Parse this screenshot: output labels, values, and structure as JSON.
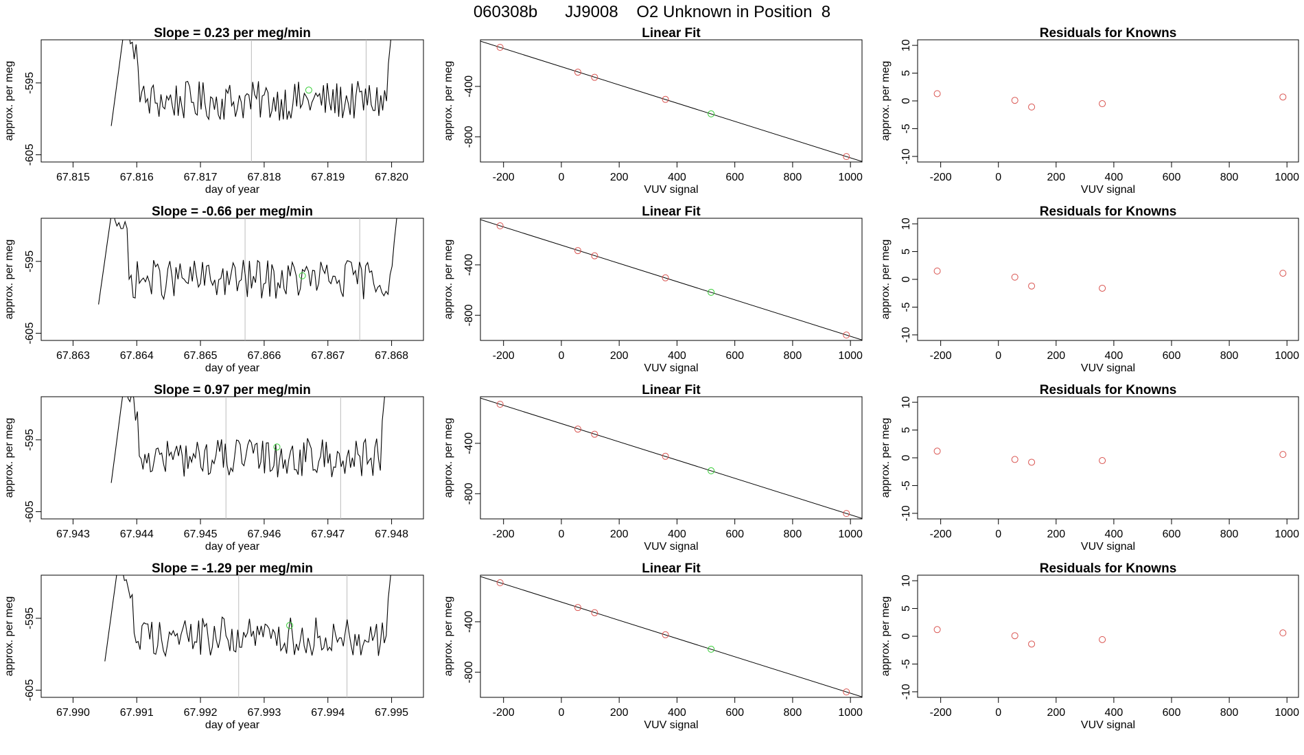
{
  "page_title": "060308b      JJ9008    O2 Unknown in Position  8",
  "colors": {
    "trace": "#000000",
    "known_point": "#d9534f",
    "unknown_point": "#33cc33",
    "guide_line": "#bbbbbb"
  },
  "labels": {
    "time_xlabel": "day of year",
    "time_ylabel": "approx. per meg",
    "fit_title": "Linear Fit",
    "fit_xlabel": "VUV signal",
    "fit_ylabel": "approx. per meg",
    "resid_title": "Residuals for Knowns",
    "resid_xlabel": "VUV signal",
    "resid_ylabel": "approx. per meg"
  },
  "chart_data": [
    {
      "type": "line",
      "title": "Slope =  0.23  per meg/min",
      "xlabel": "day of year",
      "ylabel": "approx. per meg",
      "xlim": [
        67.8145,
        67.8205
      ],
      "ylim": [
        -606,
        -589
      ],
      "x_ticks": [
        "67.815",
        "67.816",
        "67.817",
        "67.818",
        "67.819",
        "67.820"
      ],
      "x_tick_values": [
        67.815,
        67.816,
        67.817,
        67.818,
        67.819,
        67.82
      ],
      "y_ticks": [
        "-595",
        "-605"
      ],
      "y_tick_values": [
        -595,
        -605
      ],
      "x_start": 67.8156,
      "x_end": 67.8201,
      "vlines": [
        67.8178,
        67.8196
      ],
      "unknown_point": [
        67.8187,
        -596
      ]
    },
    {
      "type": "scatter",
      "title": "Linear Fit",
      "xlabel": "VUV signal",
      "ylabel": "approx. per meg",
      "xlim": [
        -280,
        1040
      ],
      "ylim": [
        -1000,
        -30
      ],
      "x_ticks": [
        "-200",
        "0",
        "200",
        "400",
        "600",
        "800",
        "1000"
      ],
      "x_tick_values": [
        -200,
        0,
        200,
        400,
        600,
        800,
        1000
      ],
      "y_ticks": [
        "-400",
        "-800"
      ],
      "y_tick_values": [
        -400,
        -800
      ],
      "known_points": [
        [
          -212,
          -90
        ],
        [
          57,
          -287
        ],
        [
          115,
          -328
        ],
        [
          360,
          -503
        ],
        [
          986,
          -957
        ]
      ],
      "unknown_point": [
        518,
        -618
      ],
      "fit_line": [
        [
          -280,
          -41
        ],
        [
          1040,
          -996
        ]
      ]
    },
    {
      "type": "scatter",
      "title": "Residuals for Knowns",
      "xlabel": "VUV signal",
      "ylabel": "approx. per meg",
      "xlim": [
        -280,
        1040
      ],
      "ylim": [
        -11,
        11
      ],
      "x_ticks": [
        "-200",
        "0",
        "200",
        "400",
        "600",
        "800",
        "1000"
      ],
      "x_tick_values": [
        -200,
        0,
        200,
        400,
        600,
        800,
        1000
      ],
      "y_ticks": [
        "10",
        "5",
        "0",
        "-5",
        "-10"
      ],
      "y_tick_values": [
        10,
        5,
        0,
        -5,
        -10
      ],
      "points": [
        [
          -212,
          1.3
        ],
        [
          57,
          0.1
        ],
        [
          115,
          -1.1
        ],
        [
          360,
          -0.5
        ],
        [
          986,
          0.7
        ]
      ]
    },
    {
      "type": "line",
      "title": "Slope =  -0.66  per meg/min",
      "xlabel": "day of year",
      "ylabel": "approx. per meg",
      "xlim": [
        67.8625,
        67.8685
      ],
      "ylim": [
        -606,
        -589
      ],
      "x_ticks": [
        "67.863",
        "67.864",
        "67.865",
        "67.866",
        "67.867",
        "67.868"
      ],
      "x_tick_values": [
        67.863,
        67.864,
        67.865,
        67.866,
        67.867,
        67.868
      ],
      "y_ticks": [
        "-595",
        "-605"
      ],
      "y_tick_values": [
        -595,
        -605
      ],
      "x_start": 67.8634,
      "x_end": 67.8682,
      "vlines": [
        67.8657,
        67.8675
      ],
      "unknown_point": [
        67.8666,
        -597
      ]
    },
    {
      "type": "scatter",
      "title": "Linear Fit",
      "xlabel": "VUV signal",
      "ylabel": "approx. per meg",
      "xlim": [
        -280,
        1040
      ],
      "ylim": [
        -1000,
        -30
      ],
      "x_ticks": [
        "-200",
        "0",
        "200",
        "400",
        "600",
        "800",
        "1000"
      ],
      "x_tick_values": [
        -200,
        0,
        200,
        400,
        600,
        800,
        1000
      ],
      "y_ticks": [
        "-400",
        "-800"
      ],
      "y_tick_values": [
        -400,
        -800
      ],
      "known_points": [
        [
          -212,
          -90
        ],
        [
          57,
          -287
        ],
        [
          115,
          -328
        ],
        [
          360,
          -503
        ],
        [
          986,
          -957
        ]
      ],
      "unknown_point": [
        518,
        -618
      ],
      "fit_line": [
        [
          -280,
          -41
        ],
        [
          1040,
          -996
        ]
      ]
    },
    {
      "type": "scatter",
      "title": "Residuals for Knowns",
      "xlabel": "VUV signal",
      "ylabel": "approx. per meg",
      "xlim": [
        -280,
        1040
      ],
      "ylim": [
        -11,
        11
      ],
      "x_ticks": [
        "-200",
        "0",
        "200",
        "400",
        "600",
        "800",
        "1000"
      ],
      "x_tick_values": [
        -200,
        0,
        200,
        400,
        600,
        800,
        1000
      ],
      "y_ticks": [
        "10",
        "5",
        "0",
        "-5",
        "-10"
      ],
      "y_tick_values": [
        10,
        5,
        0,
        -5,
        -10
      ],
      "points": [
        [
          -212,
          1.5
        ],
        [
          57,
          0.4
        ],
        [
          115,
          -1.2
        ],
        [
          360,
          -1.6
        ],
        [
          986,
          1.1
        ]
      ]
    },
    {
      "type": "line",
      "title": "Slope =  0.97  per meg/min",
      "xlabel": "day of year",
      "ylabel": "approx. per meg",
      "xlim": [
        67.9425,
        67.9485
      ],
      "ylim": [
        -606,
        -589
      ],
      "x_ticks": [
        "67.943",
        "67.944",
        "67.945",
        "67.946",
        "67.947",
        "67.948"
      ],
      "x_tick_values": [
        67.943,
        67.944,
        67.945,
        67.946,
        67.947,
        67.948
      ],
      "y_ticks": [
        "-595",
        "-605"
      ],
      "y_tick_values": [
        -595,
        -605
      ],
      "x_start": 67.9436,
      "x_end": 67.948,
      "vlines": [
        67.9454,
        67.9472
      ],
      "unknown_point": [
        67.9462,
        -596
      ]
    },
    {
      "type": "scatter",
      "title": "Linear Fit",
      "xlabel": "VUV signal",
      "ylabel": "approx. per meg",
      "xlim": [
        -280,
        1040
      ],
      "ylim": [
        -1000,
        -30
      ],
      "x_ticks": [
        "-200",
        "0",
        "200",
        "400",
        "600",
        "800",
        "1000"
      ],
      "x_tick_values": [
        -200,
        0,
        200,
        400,
        600,
        800,
        1000
      ],
      "y_ticks": [
        "-400",
        "-800"
      ],
      "y_tick_values": [
        -400,
        -800
      ],
      "known_points": [
        [
          -212,
          -90
        ],
        [
          57,
          -287
        ],
        [
          115,
          -328
        ],
        [
          360,
          -503
        ],
        [
          986,
          -957
        ]
      ],
      "unknown_point": [
        518,
        -618
      ],
      "fit_line": [
        [
          -280,
          -41
        ],
        [
          1040,
          -996
        ]
      ]
    },
    {
      "type": "scatter",
      "title": "Residuals for Knowns",
      "xlabel": "VUV signal",
      "ylabel": "approx. per meg",
      "xlim": [
        -280,
        1040
      ],
      "ylim": [
        -11,
        11
      ],
      "x_ticks": [
        "-200",
        "0",
        "200",
        "400",
        "600",
        "800",
        "1000"
      ],
      "x_tick_values": [
        -200,
        0,
        200,
        400,
        600,
        800,
        1000
      ],
      "y_ticks": [
        "10",
        "5",
        "0",
        "-5",
        "-10"
      ],
      "y_tick_values": [
        10,
        5,
        0,
        -5,
        -10
      ],
      "points": [
        [
          -212,
          1.2
        ],
        [
          57,
          -0.3
        ],
        [
          115,
          -0.8
        ],
        [
          360,
          -0.5
        ],
        [
          986,
          0.6
        ]
      ]
    },
    {
      "type": "line",
      "title": "Slope =  -1.29  per meg/min",
      "xlabel": "day of year",
      "ylabel": "approx. per meg",
      "xlim": [
        67.9895,
        67.9955
      ],
      "ylim": [
        -606,
        -589
      ],
      "x_ticks": [
        "67.990",
        "67.991",
        "67.992",
        "67.993",
        "67.994",
        "67.995"
      ],
      "x_tick_values": [
        67.99,
        67.991,
        67.992,
        67.993,
        67.994,
        67.995
      ],
      "y_ticks": [
        "-595",
        "-605"
      ],
      "y_tick_values": [
        -595,
        -605
      ],
      "x_start": 67.9905,
      "x_end": 67.9951,
      "vlines": [
        67.9926,
        67.9943
      ],
      "unknown_point": [
        67.9934,
        -596
      ]
    },
    {
      "type": "scatter",
      "title": "Linear Fit",
      "xlabel": "VUV signal",
      "ylabel": "approx. per meg",
      "xlim": [
        -280,
        1040
      ],
      "ylim": [
        -1000,
        -30
      ],
      "x_ticks": [
        "-200",
        "0",
        "200",
        "400",
        "600",
        "800",
        "1000"
      ],
      "x_tick_values": [
        -200,
        0,
        200,
        400,
        600,
        800,
        1000
      ],
      "y_ticks": [
        "-400",
        "-800"
      ],
      "y_tick_values": [
        -400,
        -800
      ],
      "known_points": [
        [
          -212,
          -90
        ],
        [
          57,
          -287
        ],
        [
          115,
          -328
        ],
        [
          360,
          -503
        ],
        [
          986,
          -957
        ]
      ],
      "unknown_point": [
        518,
        -618
      ],
      "fit_line": [
        [
          -280,
          -41
        ],
        [
          1040,
          -996
        ]
      ]
    },
    {
      "type": "scatter",
      "title": "Residuals for Knowns",
      "xlabel": "VUV signal",
      "ylabel": "approx. per meg",
      "xlim": [
        -280,
        1040
      ],
      "ylim": [
        -11,
        11
      ],
      "x_ticks": [
        "-200",
        "0",
        "200",
        "400",
        "600",
        "800",
        "1000"
      ],
      "x_tick_values": [
        -200,
        0,
        200,
        400,
        600,
        800,
        1000
      ],
      "y_ticks": [
        "10",
        "5",
        "0",
        "-5",
        "-10"
      ],
      "points": [
        [
          -212,
          1.2
        ],
        [
          57,
          0.1
        ],
        [
          115,
          -1.4
        ],
        [
          360,
          -0.6
        ],
        [
          986,
          0.6
        ]
      ]
    }
  ]
}
